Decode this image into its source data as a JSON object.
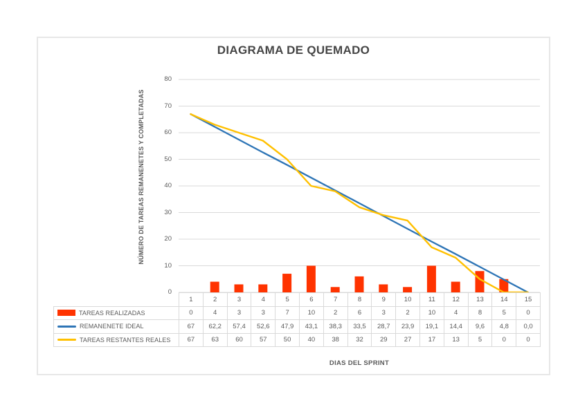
{
  "chart_data": {
    "type": "combo-bar-line",
    "title": "DIAGRAMA DE QUEMADO",
    "xlabel": "DIAS DEL SPRINT",
    "ylabel": "NÚMERO DE TAREAS REMANENETES Y COMPLETADAS",
    "categories": [
      "1",
      "2",
      "3",
      "4",
      "5",
      "6",
      "7",
      "8",
      "9",
      "10",
      "11",
      "12",
      "13",
      "14",
      "15"
    ],
    "ylim": [
      0,
      80
    ],
    "yticks": [
      80,
      70,
      60,
      50,
      40,
      30,
      20,
      10,
      0
    ],
    "grid": true,
    "grid_color": "#D9D9D9",
    "legend_position": "table-left",
    "series": [
      {
        "name": "TAREAS REALIZADAS",
        "type": "bar",
        "color": "#FF3300",
        "values": [
          0,
          4,
          3,
          3,
          7,
          10,
          2,
          6,
          3,
          2,
          10,
          4,
          8,
          5,
          0
        ],
        "labels": [
          "0",
          "4",
          "3",
          "3",
          "7",
          "10",
          "2",
          "6",
          "3",
          "2",
          "10",
          "4",
          "8",
          "5",
          "0"
        ]
      },
      {
        "name": "REMANENETE IDEAL",
        "type": "line",
        "color": "#2E75B6",
        "values": [
          67,
          62.2,
          57.4,
          52.6,
          47.9,
          43.1,
          38.3,
          33.5,
          28.7,
          23.9,
          19.1,
          14.4,
          9.6,
          4.8,
          0
        ],
        "labels": [
          "67",
          "62,2",
          "57,4",
          "52,6",
          "47,9",
          "43,1",
          "38,3",
          "33,5",
          "28,7",
          "23,9",
          "19,1",
          "14,4",
          "9,6",
          "4,8",
          "0,0"
        ]
      },
      {
        "name": "TAREAS RESTANTES REALES",
        "type": "line",
        "color": "#FFC000",
        "values": [
          67,
          63,
          60,
          57,
          50,
          40,
          38,
          32,
          29,
          27,
          17,
          13,
          5,
          0,
          0
        ],
        "labels": [
          "67",
          "63",
          "60",
          "57",
          "50",
          "40",
          "38",
          "32",
          "29",
          "27",
          "17",
          "13",
          "5",
          "0",
          "0"
        ]
      }
    ]
  }
}
